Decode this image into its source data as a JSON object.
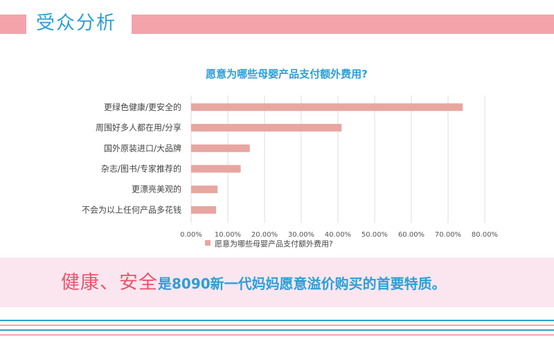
{
  "header": {
    "title": "受众分析"
  },
  "colors": {
    "accent_pink": "#f4a3ab",
    "bar": "#e8a6a1",
    "title_blue": "#2b9fd6",
    "highlight_red": "#e9546b",
    "banner_bg": "#fbe6f0"
  },
  "chart_data": {
    "type": "bar",
    "orientation": "horizontal",
    "title": "愿意为哪些母婴产品支付额外费用?",
    "categories": [
      "更绿色健康/更安全的",
      "周围好多人都在用/分享",
      "国外原装进口/大品牌",
      "杂志/图书/专家推荐的",
      "更漂亮美观的",
      "不会为以上任何产品多花钱"
    ],
    "series": [
      {
        "name": "愿意为哪些母婴产品支付额外费用?",
        "values": [
          0.74,
          0.41,
          0.16,
          0.135,
          0.072,
          0.068
        ]
      }
    ],
    "xlim": [
      0,
      0.8
    ],
    "xticks": [
      0,
      0.1,
      0.2,
      0.3,
      0.4,
      0.5,
      0.6,
      0.7,
      0.8
    ],
    "xtick_labels": [
      "0.00%",
      "10.00%",
      "20.00%",
      "30.00%",
      "40.00%",
      "50.00%",
      "60.00%",
      "70.00%",
      "80.00%"
    ],
    "grid": true,
    "legend": "bottom"
  },
  "banner": {
    "highlight": "健康、安全",
    "rest": "是8090新一代妈妈愿意溢价购买的首要特质。"
  },
  "footer": {
    "stripe_colors": [
      "#2b9fd6",
      "#f4a3ab",
      "#2b9fd6",
      "#f4a3ab"
    ]
  }
}
